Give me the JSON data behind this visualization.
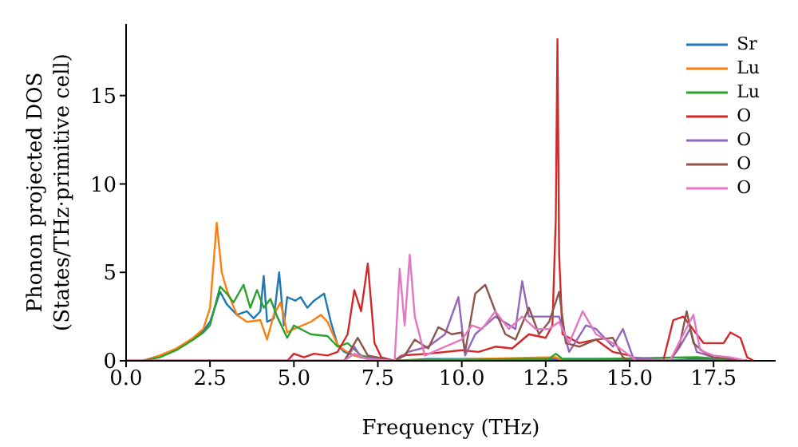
{
  "chart_data": {
    "type": "line",
    "xlabel": "Frequency (THz)",
    "ylabel": "Phonon projected DOS\n(States/THz·primitive cell)",
    "xlim": [
      0,
      19.35
    ],
    "ylim": [
      0,
      19.05
    ],
    "xticks": [
      {
        "value": 0,
        "label": "0.0"
      },
      2.5,
      {
        "value": 5,
        "label": "5.0"
      },
      7.5,
      {
        "value": 10,
        "label": "10.0"
      },
      12.5,
      {
        "value": 15,
        "label": "15.0"
      },
      17.5
    ],
    "yticks": [
      0,
      5,
      10,
      15
    ],
    "grid": false,
    "legend": "top right",
    "marker": "none",
    "line_style": "solid",
    "series": [
      {
        "name": "Sr",
        "color": "#1f77b4",
        "x": [
          2.0,
          2.3,
          2.5,
          2.8,
          3.0,
          3.3,
          3.6,
          3.8,
          4.0,
          4.1,
          4.2,
          4.4,
          4.56,
          4.7,
          4.8,
          5.04,
          5.2,
          5.4,
          5.6,
          5.9,
          6.1,
          6.3,
          6.5,
          6.8,
          7.0,
          7.3,
          7.6,
          8.0,
          9.0,
          10.0,
          12.0,
          13.0,
          14.0,
          15.0,
          16.0,
          17.0,
          18.0,
          18.5
        ],
        "values": [
          1.2,
          1.7,
          2.2,
          3.9,
          3.2,
          2.6,
          2.8,
          2.4,
          2.8,
          4.8,
          2.2,
          2.4,
          5.0,
          2.0,
          3.6,
          3.4,
          3.6,
          3.0,
          3.4,
          3.8,
          2.2,
          0.9,
          0.5,
          0.3,
          0.2,
          0.1,
          0.1,
          0,
          0.1,
          0.1,
          0.1,
          0.1,
          0.1,
          0.1,
          0,
          0.1,
          0.1,
          0
        ]
      },
      {
        "name": "Lu",
        "color": "#ff7f0e",
        "x": [
          0.5,
          1.0,
          1.5,
          2.0,
          2.3,
          2.5,
          2.7,
          2.85,
          3.0,
          3.3,
          3.6,
          4.0,
          4.2,
          4.4,
          4.6,
          4.8,
          5.0,
          5.5,
          5.8,
          6.0,
          6.3,
          6.5,
          6.8,
          7.2,
          7.6,
          8.0,
          12.8,
          13.0,
          18.5
        ],
        "values": [
          0,
          0.3,
          0.7,
          1.3,
          1.8,
          3.0,
          7.8,
          5.0,
          4.0,
          2.6,
          2.2,
          2.3,
          1.2,
          2.6,
          3.3,
          1.6,
          1.8,
          2.2,
          2.6,
          2.2,
          0.9,
          0.6,
          0.3,
          0.1,
          0,
          0,
          0.2,
          0,
          0
        ]
      },
      {
        "name": "Lu",
        "color": "#2ca02c",
        "x": [
          0.5,
          1.0,
          1.5,
          2.0,
          2.3,
          2.5,
          2.8,
          3.0,
          3.2,
          3.5,
          3.7,
          3.9,
          4.1,
          4.3,
          4.5,
          4.8,
          5.0,
          5.5,
          6.0,
          6.3,
          6.6,
          7.0,
          7.5,
          8.0,
          12.0,
          12.6,
          12.8,
          13.0,
          14.0,
          17.0,
          18.5
        ],
        "values": [
          0,
          0.2,
          0.6,
          1.2,
          1.6,
          2.0,
          4.2,
          3.8,
          3.3,
          4.3,
          3.0,
          4.0,
          3.0,
          3.5,
          2.5,
          1.3,
          2.0,
          1.5,
          1.4,
          0.8,
          1.0,
          0.3,
          0.1,
          0,
          0.1,
          0.1,
          0.4,
          0.1,
          0.1,
          0.2,
          0
        ]
      },
      {
        "name": "O",
        "color": "#d62728",
        "x": [
          0,
          4.8,
          5.0,
          5.3,
          5.6,
          6.0,
          6.3,
          6.6,
          6.8,
          7.0,
          7.2,
          7.4,
          7.6,
          8.0,
          8.2,
          9.0,
          10.0,
          10.5,
          11.0,
          11.5,
          12.0,
          12.5,
          12.7,
          12.8,
          12.85,
          12.9,
          13.0,
          13.5,
          14.0,
          14.5,
          15.0,
          15.2,
          16.0,
          16.3,
          16.6,
          17.0,
          17.2,
          17.8,
          18.0,
          18.3,
          18.5,
          18.7
        ],
        "values": [
          0,
          0,
          0.4,
          0.2,
          0.4,
          0.3,
          0.5,
          1.5,
          4.0,
          2.8,
          5.5,
          1.0,
          0.2,
          0,
          0.3,
          0.4,
          0.6,
          0.5,
          0.8,
          0.7,
          1.5,
          1.3,
          2.0,
          8.0,
          18.2,
          6.0,
          1.5,
          1.0,
          1.2,
          0.5,
          0.3,
          0,
          0,
          2.3,
          2.5,
          1.5,
          1.0,
          1.0,
          1.6,
          1.3,
          0.2,
          0
        ]
      },
      {
        "name": "O",
        "color": "#9467bd",
        "x": [
          0,
          6.5,
          6.8,
          7.0,
          8.0,
          8.4,
          9.0,
          9.5,
          9.9,
          10.1,
          10.4,
          11.0,
          11.6,
          11.8,
          12.0,
          12.5,
          12.9,
          13.2,
          13.7,
          14.0,
          14.5,
          14.8,
          15.1,
          16.2,
          16.5,
          16.8,
          17.0,
          17.5,
          18.0,
          18.5
        ],
        "values": [
          0,
          0,
          0.8,
          0.2,
          0,
          0.5,
          0.8,
          1.5,
          3.6,
          0.3,
          1.5,
          2.5,
          1.8,
          4.5,
          2.5,
          2.5,
          2.5,
          0.5,
          2.0,
          1.8,
          0.8,
          1.8,
          0.2,
          0,
          0.8,
          1.8,
          0.5,
          0.2,
          0.1,
          0
        ]
      },
      {
        "name": "O",
        "color": "#8c564b",
        "x": [
          0,
          6.5,
          6.9,
          7.2,
          8.0,
          8.3,
          8.6,
          9.0,
          9.3,
          9.7,
          10.0,
          10.1,
          10.4,
          10.7,
          11.0,
          11.3,
          11.6,
          12.0,
          12.3,
          12.6,
          12.9,
          13.1,
          13.5,
          14.0,
          14.5,
          14.8,
          15.0,
          16.2,
          16.5,
          16.7,
          16.9,
          17.2,
          17.5,
          18.5
        ],
        "values": [
          0,
          0,
          1.3,
          0.3,
          0,
          0.3,
          1.2,
          0.7,
          1.9,
          1.5,
          1.6,
          0.5,
          3.8,
          4.3,
          2.8,
          1.5,
          1.2,
          3.0,
          1.5,
          2.2,
          3.9,
          1.0,
          0.8,
          1.2,
          1.3,
          0.2,
          0,
          0,
          1.0,
          2.8,
          1.0,
          0.5,
          0.2,
          0
        ]
      },
      {
        "name": "O",
        "color": "#e377c2",
        "x": [
          0,
          6.5,
          6.8,
          7.2,
          8.0,
          8.15,
          8.3,
          8.45,
          8.6,
          8.9,
          9.5,
          10.0,
          10.3,
          10.6,
          11.0,
          11.4,
          11.8,
          12.2,
          12.6,
          12.9,
          13.2,
          13.6,
          14.0,
          14.5,
          15.0,
          15.2,
          16.2,
          16.6,
          16.9,
          17.1,
          17.5,
          18.0,
          18.5
        ],
        "values": [
          0,
          0,
          0.4,
          0.1,
          0,
          5.2,
          2.0,
          6.0,
          2.5,
          0.3,
          0.8,
          1.2,
          2.0,
          1.8,
          2.8,
          1.8,
          2.5,
          1.8,
          1.8,
          2.2,
          1.0,
          2.8,
          1.5,
          1.0,
          0.3,
          0,
          0,
          1.5,
          2.6,
          0.6,
          0.3,
          0.2,
          0
        ]
      }
    ]
  }
}
